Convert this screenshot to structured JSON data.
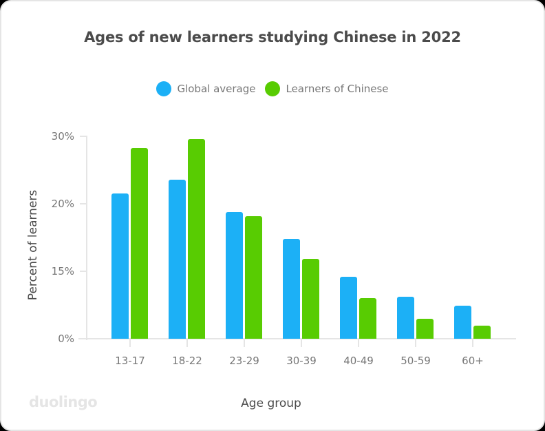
{
  "title": "Ages of new learners studying Chinese in 2022",
  "legend": [
    {
      "label": "Global average",
      "color": "#1cb0f6"
    },
    {
      "label": "Learners of Chinese",
      "color": "#58cc02"
    }
  ],
  "axes": {
    "ylabel": "Percent of learners",
    "xlabel": "Age group",
    "yticks": [
      "30%",
      "20%",
      "15%",
      "0%"
    ]
  },
  "branding": {
    "logo": "duolingo"
  },
  "chart_data": {
    "type": "bar",
    "title": "Ages of new learners studying Chinese in 2022",
    "xlabel": "Age group",
    "ylabel": "Percent of learners",
    "categories": [
      "13-17",
      "18-22",
      "23-29",
      "30-39",
      "40-49",
      "50-59",
      "60+"
    ],
    "series": [
      {
        "name": "Global average",
        "color": "#1cb0f6",
        "values": [
          21.5,
          23.6,
          19.4,
          17.4,
          13.8,
          9.3,
          7.4
        ]
      },
      {
        "name": "Learners of Chinese",
        "color": "#58cc02",
        "values": [
          28.3,
          29.6,
          19.1,
          15.9,
          9.0,
          4.4,
          2.9
        ]
      }
    ],
    "ytick_values": [
      30,
      20,
      15,
      0
    ],
    "ytick_labels": [
      "30%",
      "20%",
      "15%",
      "0%"
    ],
    "ylim": [
      0,
      30
    ],
    "grid": false,
    "legend_position": "top"
  }
}
